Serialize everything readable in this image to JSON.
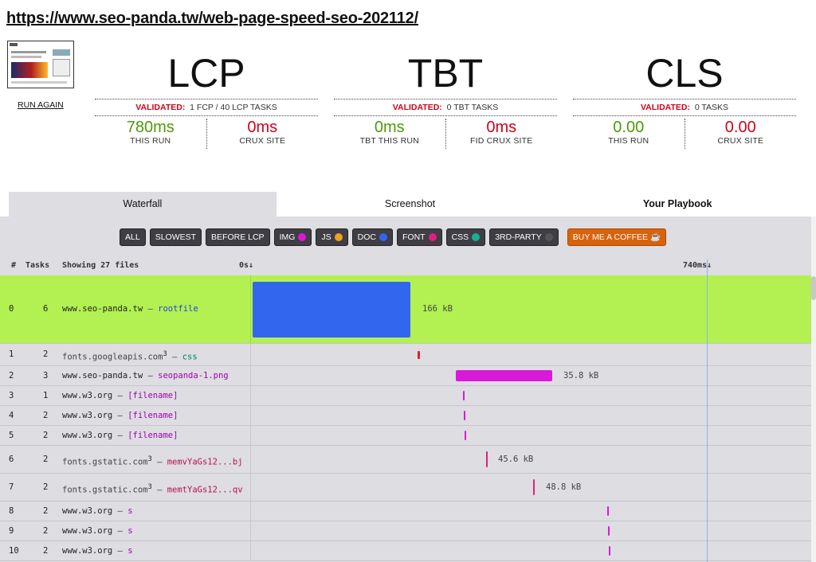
{
  "url": "https://www.seo-panda.tw/web-page-speed-seo-202112/",
  "run_again": "RUN AGAIN",
  "metrics": [
    {
      "title": "LCP",
      "validated_label": "VALIDATED:",
      "validated_text": "1 FCP / 40 LCP TASKS",
      "left_value": "780ms",
      "left_label": "THIS RUN",
      "right_value": "0ms",
      "right_label": "CRUX SITE"
    },
    {
      "title": "TBT",
      "validated_label": "VALIDATED:",
      "validated_text": "0 TBT TASKS",
      "left_value": "0ms",
      "left_label": "TBT THIS RUN",
      "right_value": "0ms",
      "right_label": "FID CRUX SITE"
    },
    {
      "title": "CLS",
      "validated_label": "VALIDATED:",
      "validated_text": "0 TASKS",
      "left_value": "0.00",
      "left_label": "THIS RUN",
      "right_value": "0.00",
      "right_label": "CRUX SITE"
    }
  ],
  "tabs": [
    "Waterfall",
    "Screenshot",
    "Your Playbook"
  ],
  "filters": [
    {
      "label": "ALL"
    },
    {
      "label": "SLOWEST"
    },
    {
      "label": "BEFORE LCP"
    },
    {
      "label": "IMG",
      "dot": "#d81ad8"
    },
    {
      "label": "JS",
      "dot": "#f0a020"
    },
    {
      "label": "DOC",
      "dot": "#3366ee"
    },
    {
      "label": "FONT",
      "dot": "#e0207a"
    },
    {
      "label": "CSS",
      "dot": "#18b090"
    },
    {
      "label": "3RD-PARTY",
      "dot": "#555555"
    }
  ],
  "coffee": "BUY ME A COFFEE ☕",
  "table": {
    "col_index": "#",
    "col_tasks": "Tasks",
    "col_files": "Showing 27 files",
    "time_start": "0s↓",
    "time_end": "740ms↓"
  },
  "rows": [
    {
      "i": "0",
      "tasks": "6",
      "domain": "www.seo-panda.tw",
      "sup": "",
      "resource": "rootfile",
      "type": "doc",
      "size": "166 kB",
      "color": "#3366ee"
    },
    {
      "i": "1",
      "tasks": "2",
      "domain": "fonts.googleapis.com",
      "sup": "3",
      "resource": "css",
      "type": "css",
      "size": "",
      "color": "#e0202a"
    },
    {
      "i": "2",
      "tasks": "3",
      "domain": "www.seo-panda.tw",
      "sup": "",
      "resource": "seopanda-1.png",
      "type": "img",
      "size": "35.8 kB",
      "color": "#d81ad8"
    },
    {
      "i": "3",
      "tasks": "1",
      "domain": "www.w3.org",
      "sup": "",
      "resource": "[filename]",
      "type": "img",
      "size": "",
      "color": "#d81ad8"
    },
    {
      "i": "4",
      "tasks": "2",
      "domain": "www.w3.org",
      "sup": "",
      "resource": "[filename]",
      "type": "img",
      "size": "",
      "color": "#d81ad8"
    },
    {
      "i": "5",
      "tasks": "2",
      "domain": "www.w3.org",
      "sup": "",
      "resource": "[filename]",
      "type": "img",
      "size": "",
      "color": "#d81ad8"
    },
    {
      "i": "6",
      "tasks": "2",
      "domain": "fonts.gstatic.com",
      "sup": "3",
      "resource": "memvYaGs12...bj",
      "type": "font",
      "size": "45.6 kB",
      "color": "#e0207a"
    },
    {
      "i": "7",
      "tasks": "2",
      "domain": "fonts.gstatic.com",
      "sup": "3",
      "resource": "memtYaGs12...qv",
      "type": "font",
      "size": "48.8 kB",
      "color": "#e0207a"
    },
    {
      "i": "8",
      "tasks": "2",
      "domain": "www.w3.org",
      "sup": "",
      "resource": "s",
      "type": "img",
      "size": "",
      "color": "#d81ad8"
    },
    {
      "i": "9",
      "tasks": "2",
      "domain": "www.w3.org",
      "sup": "",
      "resource": "s",
      "type": "img",
      "size": "",
      "color": "#d81ad8"
    },
    {
      "i": "10",
      "tasks": "2",
      "domain": "www.w3.org",
      "sup": "",
      "resource": "s",
      "type": "img",
      "size": "",
      "color": "#d81ad8"
    }
  ]
}
